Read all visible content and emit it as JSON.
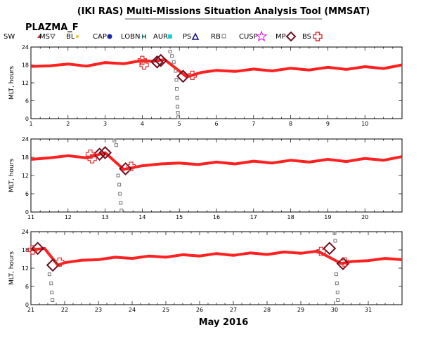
{
  "title": "(IKI RAS) Multi-Missions Situation Analysis Tool (MMSAT)",
  "subtitle": "PLAZMA_F",
  "x_title": "May 2016",
  "legend": [
    {
      "label": "SW",
      "icon": "triangle-small-icon",
      "color": "#cc3333"
    },
    {
      "label": "MS",
      "icon": "triangle-down-icon",
      "color": "#555555"
    },
    {
      "label": "BL",
      "icon": "dot-icon",
      "color": "#e8c020"
    },
    {
      "label": "CAP",
      "icon": "hexagon-icon",
      "color": "#1a2aa8"
    },
    {
      "label": "LOBN",
      "icon": "bowtie-icon",
      "color": "#1f6f6f"
    },
    {
      "label": "AUR",
      "icon": "square-icon",
      "color": "#22d0d0"
    },
    {
      "label": "PS",
      "icon": "triangle-outline-icon",
      "color": "#101080"
    },
    {
      "label": "RB",
      "icon": "square-outline-icon",
      "color": "#777777"
    },
    {
      "label": "CUSP",
      "icon": "star-icon",
      "color": "#e020e0"
    },
    {
      "label": "MP",
      "icon": "diamond-icon",
      "color": "#6a1020"
    },
    {
      "label": "BS",
      "icon": "cross-outline-icon",
      "color": "#e03030"
    }
  ],
  "chart_data": [
    {
      "type": "scatter",
      "ylabel": "MLT, hours",
      "xlim": [
        1,
        11
      ],
      "ylim": [
        0,
        24
      ],
      "yticks": [
        "0",
        "6",
        "12",
        "18",
        "24"
      ],
      "xticks": [
        "1",
        "2",
        "3",
        "4",
        "5",
        "6",
        "7",
        "8",
        "9",
        "10"
      ],
      "series": [
        {
          "name": "SW",
          "color": "#ff2020",
          "points": [
            [
              1,
              17.5
            ],
            [
              1.5,
              17.7
            ],
            [
              2,
              18.3
            ],
            [
              2.5,
              17.6
            ],
            [
              3,
              18.8
            ],
            [
              3.5,
              18.4
            ],
            [
              4,
              19.5
            ],
            [
              4.3,
              19.2
            ],
            [
              4.6,
              19.8
            ],
            [
              5.2,
              14
            ],
            [
              5.6,
              15.5
            ],
            [
              6,
              16.2
            ],
            [
              6.5,
              15.8
            ],
            [
              7,
              16.6
            ],
            [
              7.5,
              16.0
            ],
            [
              8,
              16.9
            ],
            [
              8.5,
              16.3
            ],
            [
              9,
              17.2
            ],
            [
              9.5,
              16.5
            ],
            [
              10,
              17.4
            ],
            [
              10.5,
              16.8
            ],
            [
              11,
              18
            ]
          ]
        },
        {
          "name": "RB",
          "color": "#777777",
          "points": [
            [
              4.75,
              22.5
            ],
            [
              4.8,
              21
            ],
            [
              4.85,
              19
            ],
            [
              4.9,
              16
            ],
            [
              4.92,
              13
            ],
            [
              4.93,
              10
            ],
            [
              4.94,
              7
            ],
            [
              4.95,
              4
            ],
            [
              4.96,
              2
            ],
            [
              4.97,
              0.5
            ]
          ]
        },
        {
          "name": "MP",
          "color": "#6a1020",
          "points": [
            [
              4.4,
              19
            ],
            [
              4.5,
              19.5
            ],
            [
              5.1,
              14.2
            ]
          ]
        },
        {
          "name": "BS",
          "color": "#e03030",
          "points": [
            [
              4.0,
              19.5
            ],
            [
              4.05,
              18
            ],
            [
              5.35,
              14.5
            ]
          ]
        }
      ]
    },
    {
      "type": "scatter",
      "ylabel": "MLT, hours",
      "xlim": [
        11,
        21
      ],
      "ylim": [
        0,
        24
      ],
      "yticks": [
        "0",
        "6",
        "12",
        "18",
        "24"
      ],
      "xticks": [
        "11",
        "12",
        "13",
        "14",
        "15",
        "16",
        "17",
        "18",
        "19",
        "20"
      ],
      "series": [
        {
          "name": "SW",
          "color": "#ff2020",
          "points": [
            [
              11,
              17.3
            ],
            [
              11.5,
              17.8
            ],
            [
              12,
              18.5
            ],
            [
              12.5,
              17.8
            ],
            [
              13,
              19.5
            ],
            [
              13.5,
              14
            ],
            [
              14,
              15.2
            ],
            [
              14.5,
              15.8
            ],
            [
              15,
              16.1
            ],
            [
              15.5,
              15.6
            ],
            [
              16,
              16.4
            ],
            [
              16.5,
              15.8
            ],
            [
              17,
              16.7
            ],
            [
              17.5,
              16.1
            ],
            [
              18,
              17
            ],
            [
              18.5,
              16.4
            ],
            [
              19,
              17.3
            ],
            [
              19.5,
              16.6
            ],
            [
              20,
              17.6
            ],
            [
              20.5,
              17
            ],
            [
              21,
              18.2
            ]
          ]
        },
        {
          "name": "RB",
          "color": "#777777",
          "points": [
            [
              13.25,
              23.5
            ],
            [
              13.3,
              22
            ],
            [
              13.35,
              12
            ],
            [
              13.38,
              9
            ],
            [
              13.4,
              6
            ],
            [
              13.42,
              3
            ],
            [
              13.44,
              0.5
            ]
          ]
        },
        {
          "name": "MP",
          "color": "#6a1020",
          "points": [
            [
              12.85,
              19
            ],
            [
              13,
              19.5
            ],
            [
              13.55,
              14.2
            ]
          ]
        },
        {
          "name": "BS",
          "color": "#e03030",
          "points": [
            [
              12.6,
              19
            ],
            [
              12.65,
              17.5
            ],
            [
              13.7,
              15
            ]
          ]
        }
      ]
    },
    {
      "type": "scatter",
      "ylabel": "MLT, hours",
      "xlim": [
        21,
        32
      ],
      "ylim": [
        0,
        24
      ],
      "yticks": [
        "0",
        "6",
        "12",
        "18",
        "24"
      ],
      "xticks": [
        "21",
        "22",
        "23",
        "24",
        "25",
        "26",
        "27",
        "28",
        "29",
        "30",
        "31"
      ],
      "series": [
        {
          "name": "SW",
          "color": "#ff2020",
          "points": [
            [
              21,
              18
            ],
            [
              21.4,
              18.5
            ],
            [
              21.8,
              13
            ],
            [
              22,
              13.8
            ],
            [
              22.5,
              14.6
            ],
            [
              23,
              14.8
            ],
            [
              23.5,
              15.6
            ],
            [
              24,
              15.2
            ],
            [
              24.5,
              16
            ],
            [
              25,
              15.6
            ],
            [
              25.5,
              16.4
            ],
            [
              26,
              16
            ],
            [
              26.5,
              16.8
            ],
            [
              27,
              16.2
            ],
            [
              27.5,
              17
            ],
            [
              28,
              16.5
            ],
            [
              28.5,
              17.3
            ],
            [
              29,
              16.9
            ],
            [
              29.5,
              17.6
            ],
            [
              30.2,
              13.5
            ],
            [
              30.5,
              14.2
            ],
            [
              31,
              14.5
            ],
            [
              31.5,
              15.2
            ],
            [
              32,
              14.8
            ]
          ]
        },
        {
          "name": "RB",
          "color": "#777777",
          "points": [
            [
              21.55,
              10
            ],
            [
              21.6,
              7
            ],
            [
              21.62,
              4
            ],
            [
              21.64,
              1.5
            ],
            [
              30,
              23.5
            ],
            [
              30.02,
              21
            ],
            [
              30.05,
              10
            ],
            [
              30.07,
              7
            ],
            [
              30.09,
              4
            ],
            [
              30.1,
              1.5
            ]
          ]
        },
        {
          "name": "MP",
          "color": "#6a1020",
          "points": [
            [
              21.2,
              18.5
            ],
            [
              21.65,
              13
            ],
            [
              29.85,
              18.5
            ],
            [
              30.25,
              13.5
            ]
          ]
        },
        {
          "name": "BS",
          "color": "#e03030",
          "points": [
            [
              21.05,
              18
            ],
            [
              21.85,
              14
            ],
            [
              29.6,
              17.5
            ],
            [
              30.3,
              14
            ]
          ]
        }
      ]
    }
  ]
}
